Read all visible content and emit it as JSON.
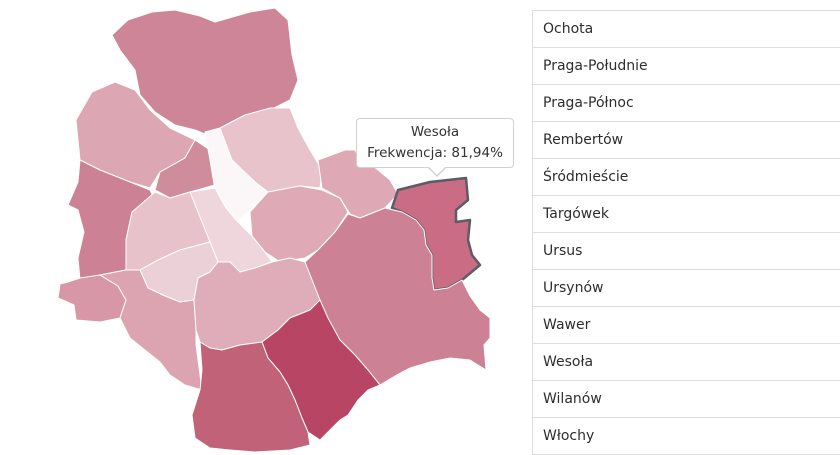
{
  "map": {
    "regions": [
      {
        "id": "bielany",
        "fill": "#cd8597"
      },
      {
        "id": "bemowo",
        "fill": "#dca6b2"
      },
      {
        "id": "bielany-inner",
        "fill": "#cf8d9c"
      },
      {
        "id": "zoliborz",
        "fill": "#fbf7f8"
      },
      {
        "id": "bialoleka",
        "fill": "#e8c3cc"
      },
      {
        "id": "wola",
        "fill": "#cc8194"
      },
      {
        "id": "wola-inner",
        "fill": "#e8c2cb"
      },
      {
        "id": "srodmiescie",
        "fill": "#efd6dc"
      },
      {
        "id": "praga-polnoc",
        "fill": "#dfaab5"
      },
      {
        "id": "targowek",
        "fill": "#dea8b4"
      },
      {
        "id": "rembertow",
        "fill": "#c96c84",
        "active": true
      },
      {
        "id": "ochota",
        "fill": "#ecd0d7"
      },
      {
        "id": "ursus",
        "fill": "#d897a7"
      },
      {
        "id": "wlochy",
        "fill": "#dca3b1"
      },
      {
        "id": "mokotow",
        "fill": "#dfadb9"
      },
      {
        "id": "praga-poludnie",
        "fill": "#cd8195"
      },
      {
        "id": "wilanow",
        "fill": "#b84563"
      },
      {
        "id": "ursynow",
        "fill": "#c26279"
      },
      {
        "id": "wawer",
        "fill": "#cc8296"
      }
    ]
  },
  "tooltip": {
    "name": "Wesoła",
    "value": "Frekwencja: 81,94%"
  },
  "list": [
    "Ochota",
    "Praga-Południe",
    "Praga-Północ",
    "Rembertów",
    "Śródmieście",
    "Targówek",
    "Ursus",
    "Ursynów",
    "Wawer",
    "Wesoła",
    "Wilanów",
    "Włochy"
  ]
}
